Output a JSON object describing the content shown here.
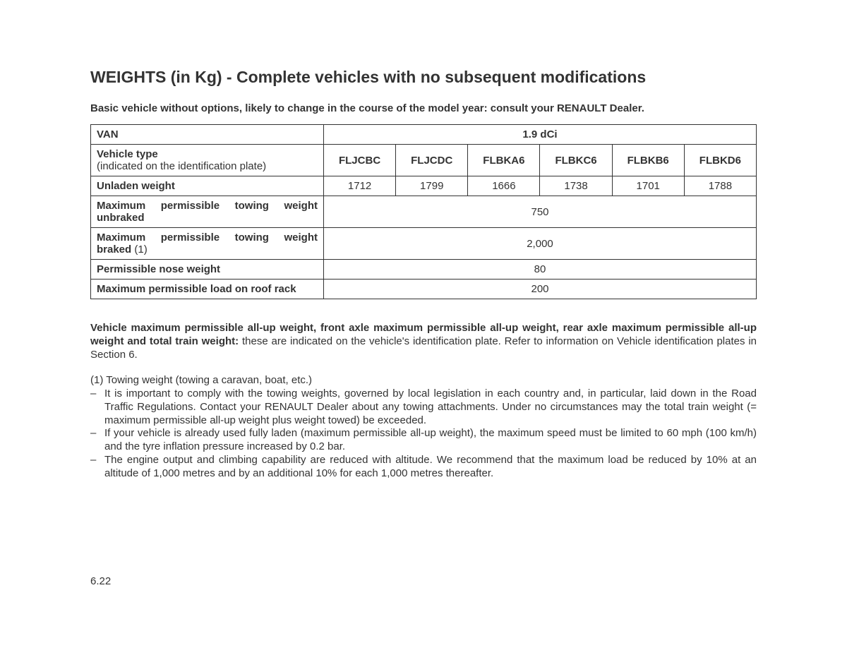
{
  "title": "WEIGHTS (in Kg) - Complete vehicles with no subsequent modifications",
  "subtitle": "Basic vehicle without options, likely to change in the course of the model year: consult your RENAULT Dealer.",
  "table": {
    "van_label": "VAN",
    "engine_label": "1.9 dCi",
    "vehicle_type_label_bold": "Vehicle type",
    "vehicle_type_label_normal": "(indicated on the identification plate)",
    "vehicle_types": [
      "FLJCBC",
      "FLJCDC",
      "FLBKA6",
      "FLBKC6",
      "FLBKB6",
      "FLBKD6"
    ],
    "rows": {
      "unladen": {
        "label": "Unladen weight",
        "values": [
          "1712",
          "1799",
          "1666",
          "1738",
          "1701",
          "1788"
        ]
      },
      "tow_unbraked": {
        "label_pre": "Maximum permissible towing weight",
        "label_suffix": "unbraked",
        "value": "750"
      },
      "tow_braked": {
        "label_pre": "Maximum permissible towing weight",
        "label_bold_suffix": "braked",
        "label_normal_suffix": " (1)",
        "value": "2,000"
      },
      "nose": {
        "label": "Permissible nose weight",
        "value": "80"
      },
      "roof": {
        "label": "Maximum permissible load on roof rack",
        "value": "200"
      }
    }
  },
  "note": {
    "bold": "Vehicle maximum permissible all-up weight, front axle maximum permissible all-up weight, rear axle maximum permissible all-up weight and total train weight:",
    "rest": " these are indicated on the vehicle's identification plate. Refer to information on Vehicle identification plates in Section 6."
  },
  "footnote": {
    "intro": "(1) Towing weight (towing a caravan, boat, etc.)",
    "items": [
      "It is important to comply with the towing weights, governed by local legislation in each country and, in particular, laid down in the Road Traffic Regulations. Contact your RENAULT Dealer about any towing attachments. Under no circumstances may the total train weight (= maximum permissible all-up weight plus weight towed) be exceeded.",
      "If your vehicle is already used fully laden (maximum permissible all-up weight), the maximum speed must be limited to 60 mph (100 km/h) and the tyre inflation pressure increased by 0.2 bar.",
      "The engine output and climbing capability are reduced with altitude. We recommend that the maximum load be reduced by 10% at an altitude of 1,000 metres and by an additional 10% for each 1,000 metres thereafter."
    ]
  },
  "page_number": "6.22"
}
